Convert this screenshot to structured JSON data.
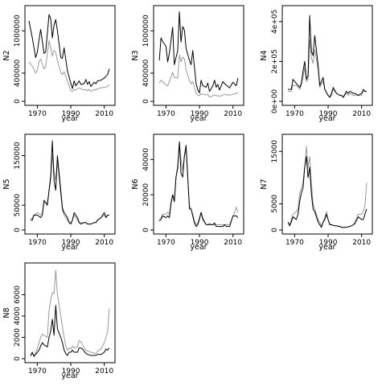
{
  "colors": {
    "observed": "#000000",
    "model": "#999999",
    "frame": "#000000"
  },
  "chart_data": [
    {
      "type": "line",
      "ylabel": "N2",
      "xlabel": "year",
      "xlim": [
        1965,
        2014
      ],
      "ylim": [
        0,
        1300000
      ],
      "xticks": [
        1970,
        1990,
        2010
      ],
      "xtick_labels": [
        "1970",
        "1990",
        "2010"
      ],
      "yticks": [
        0,
        400000,
        1000000
      ],
      "ytick_labels": [
        "0",
        "400000",
        "1000000"
      ],
      "x": [
        1965,
        1967,
        1969,
        1970,
        1971,
        1972,
        1974,
        1975,
        1977,
        1978,
        1979,
        1980,
        1981,
        1982,
        1984,
        1985,
        1986,
        1988,
        1990,
        1991,
        1992,
        1993,
        1995,
        1996,
        1998,
        1999,
        2000,
        2001,
        2002,
        2004,
        2005,
        2006,
        2008,
        2010,
        2012,
        2013
      ],
      "series": [
        {
          "role": "observed",
          "values": [
            1140000,
            900000,
            620000,
            700000,
            870000,
            1020000,
            680000,
            700000,
            1230000,
            1170000,
            900000,
            1080000,
            1160000,
            1000000,
            620000,
            610000,
            760000,
            430000,
            260000,
            180000,
            290000,
            220000,
            290000,
            240000,
            250000,
            310000,
            240000,
            280000,
            210000,
            270000,
            250000,
            290000,
            300000,
            330000,
            380000,
            460000
          ]
        },
        {
          "role": "model",
          "values": [
            560000,
            500000,
            400000,
            440000,
            560000,
            600000,
            460000,
            490000,
            860000,
            760000,
            640000,
            720000,
            700000,
            580000,
            410000,
            380000,
            420000,
            290000,
            150000,
            140000,
            170000,
            160000,
            190000,
            180000,
            160000,
            170000,
            150000,
            170000,
            140000,
            170000,
            160000,
            180000,
            190000,
            200000,
            210000,
            240000
          ]
        }
      ]
    },
    {
      "type": "line",
      "ylabel": "N3",
      "xlabel": "year",
      "xlim": [
        1965,
        2014
      ],
      "ylim": [
        0,
        1300000
      ],
      "xticks": [
        1970,
        1990,
        2010
      ],
      "xtick_labels": [
        "1970",
        "1990",
        "2010"
      ],
      "yticks": [
        0,
        400000,
        1000000
      ],
      "ytick_labels": [
        "0",
        "400000",
        "1000000"
      ],
      "x": [
        1966,
        1967,
        1968,
        1970,
        1971,
        1972,
        1974,
        1975,
        1977,
        1978,
        1979,
        1980,
        1981,
        1982,
        1984,
        1985,
        1986,
        1988,
        1989,
        1990,
        1991,
        1992,
        1994,
        1995,
        1996,
        1998,
        1999,
        2000,
        2001,
        2002,
        2004,
        2005,
        2006,
        2008,
        2010,
        2012,
        2013
      ],
      "series": [
        {
          "role": "observed",
          "values": [
            580000,
            900000,
            850000,
            780000,
            560000,
            680000,
            1050000,
            520000,
            720000,
            1270000,
            840000,
            1060000,
            1010000,
            750000,
            580000,
            520000,
            720000,
            250000,
            160000,
            120000,
            300000,
            220000,
            200000,
            260000,
            140000,
            220000,
            300000,
            200000,
            240000,
            160000,
            280000,
            250000,
            230000,
            190000,
            270000,
            220000,
            330000
          ]
        },
        {
          "role": "model",
          "values": [
            260000,
            300000,
            280000,
            230000,
            220000,
            280000,
            410000,
            340000,
            330000,
            660000,
            560000,
            630000,
            600000,
            450000,
            290000,
            250000,
            280000,
            110000,
            90000,
            80000,
            110000,
            100000,
            90000,
            100000,
            60000,
            80000,
            90000,
            80000,
            80000,
            70000,
            90000,
            100000,
            90000,
            90000,
            100000,
            110000,
            130000
          ]
        }
      ]
    },
    {
      "type": "line",
      "ylabel": "N4",
      "xlabel": "year",
      "xlim": [
        1965,
        2014
      ],
      "ylim": [
        0,
        460000
      ],
      "xticks": [
        1970,
        1990,
        2010
      ],
      "xtick_labels": [
        "1970",
        "1990",
        "2010"
      ],
      "yticks": [
        0,
        200000,
        400000
      ],
      "ytick_labels": [
        "0e+00",
        "2e+05",
        "4e+05"
      ],
      "x": [
        1966,
        1968,
        1969,
        1971,
        1973,
        1974,
        1975,
        1976,
        1977,
        1978,
        1979,
        1980,
        1981,
        1982,
        1984,
        1985,
        1987,
        1988,
        1990,
        1991,
        1992,
        1993,
        1995,
        1997,
        1998,
        1999,
        2001,
        2002,
        2003,
        2005,
        2006,
        2008,
        2010,
        2011,
        2012,
        2013
      ],
      "series": [
        {
          "role": "observed",
          "values": [
            60000,
            60000,
            110000,
            90000,
            70000,
            90000,
            150000,
            200000,
            110000,
            130000,
            430000,
            250000,
            230000,
            330000,
            180000,
            80000,
            120000,
            60000,
            30000,
            20000,
            40000,
            70000,
            40000,
            30000,
            30000,
            20000,
            50000,
            40000,
            50000,
            40000,
            40000,
            30000,
            40000,
            60000,
            50000,
            50000
          ]
        },
        {
          "role": "model",
          "values": [
            50000,
            50000,
            80000,
            80000,
            60000,
            80000,
            120000,
            170000,
            100000,
            110000,
            310000,
            220000,
            190000,
            260000,
            160000,
            70000,
            100000,
            60000,
            30000,
            20000,
            30000,
            60000,
            40000,
            30000,
            30000,
            20000,
            40000,
            30000,
            40000,
            30000,
            30000,
            30000,
            30000,
            50000,
            50000,
            50000
          ]
        }
      ]
    },
    {
      "type": "line",
      "ylabel": "N5",
      "xlabel": "year",
      "xlim": [
        1965,
        2014
      ],
      "ylim": [
        0,
        185000
      ],
      "xticks": [
        1970,
        1990,
        2010
      ],
      "xtick_labels": [
        "1970",
        "1990",
        "2010"
      ],
      "yticks": [
        0,
        50000,
        150000
      ],
      "ytick_labels": [
        "0",
        "50000",
        "150000"
      ],
      "x": [
        1966,
        1967,
        1968,
        1970,
        1972,
        1973,
        1974,
        1975,
        1976,
        1978,
        1979,
        1980,
        1981,
        1982,
        1984,
        1985,
        1986,
        1988,
        1989,
        1990,
        1991,
        1992,
        1994,
        1995,
        1996,
        1998,
        1999,
        2000,
        2002,
        2004,
        2005,
        2006,
        2008,
        2010,
        2011,
        2012,
        2013
      ],
      "series": [
        {
          "role": "observed",
          "values": [
            20000,
            20000,
            30000,
            30000,
            25000,
            30000,
            60000,
            55000,
            50000,
            110000,
            180000,
            100000,
            80000,
            150000,
            80000,
            45000,
            35000,
            25000,
            15000,
            12000,
            20000,
            35000,
            25000,
            15000,
            12000,
            15000,
            15000,
            12000,
            12000,
            15000,
            15000,
            20000,
            25000,
            35000,
            25000,
            30000,
            30000
          ]
        },
        {
          "role": "model",
          "values": [
            20000,
            25000,
            30000,
            35000,
            30000,
            35000,
            55000,
            55000,
            55000,
            100000,
            150000,
            120000,
            100000,
            140000,
            70000,
            40000,
            30000,
            20000,
            15000,
            15000,
            20000,
            30000,
            20000,
            15000,
            15000,
            15000,
            15000,
            12000,
            12000,
            15000,
            15000,
            20000,
            25000,
            30000,
            25000,
            30000,
            30000
          ]
        }
      ]
    },
    {
      "type": "line",
      "ylabel": "N6",
      "xlabel": "year",
      "xlim": [
        1965,
        2014
      ],
      "ylim": [
        0,
        52000
      ],
      "xticks": [
        1970,
        1990,
        2010
      ],
      "xtick_labels": [
        "1970",
        "1990",
        "2010"
      ],
      "yticks": [
        0,
        20000,
        40000
      ],
      "ytick_labels": [
        "0",
        "20000",
        "40000"
      ],
      "x": [
        1966,
        1967,
        1968,
        1970,
        1971,
        1972,
        1973,
        1974,
        1975,
        1976,
        1977,
        1978,
        1979,
        1980,
        1981,
        1982,
        1984,
        1985,
        1986,
        1987,
        1988,
        1989,
        1990,
        1991,
        1992,
        1994,
        1995,
        1996,
        1997,
        1998,
        1999,
        2000,
        2002,
        2004,
        2005,
        2006,
        2008,
        2010,
        2011,
        2012,
        2013
      ],
      "series": [
        {
          "role": "observed",
          "values": [
            5000,
            6000,
            8000,
            7000,
            8000,
            7000,
            15000,
            20000,
            16000,
            30000,
            35000,
            50000,
            32000,
            30000,
            42000,
            48000,
            12000,
            12000,
            8000,
            4000,
            2000,
            3000,
            6000,
            10000,
            6000,
            3000,
            3000,
            3000,
            3000,
            3000,
            4000,
            2000,
            2000,
            2000,
            3000,
            2000,
            2000,
            8000,
            8000,
            8000,
            7000
          ]
        },
        {
          "role": "model",
          "values": [
            6000,
            7000,
            9000,
            9000,
            10000,
            9000,
            16000,
            20000,
            18000,
            30000,
            37000,
            50000,
            40000,
            34000,
            42000,
            45000,
            14000,
            12000,
            9000,
            5000,
            3000,
            4000,
            7000,
            10000,
            7000,
            3000,
            3000,
            4000,
            3000,
            3000,
            3000,
            3000,
            3000,
            3000,
            3000,
            3000,
            3000,
            8000,
            10000,
            13000,
            10000
          ]
        }
      ]
    },
    {
      "type": "line",
      "ylabel": "N7",
      "xlabel": "year",
      "xlim": [
        1965,
        2014
      ],
      "ylim": [
        0,
        17500
      ],
      "xticks": [
        1970,
        1990,
        2010
      ],
      "xtick_labels": [
        "1970",
        "1990",
        "2010"
      ],
      "yticks": [
        0,
        5000,
        15000
      ],
      "ytick_labels": [
        "0",
        "5000",
        "15000"
      ],
      "x": [
        1966,
        1967,
        1968,
        1969,
        1971,
        1972,
        1973,
        1974,
        1975,
        1976,
        1977,
        1978,
        1979,
        1980,
        1981,
        1982,
        1984,
        1985,
        1986,
        1987,
        1988,
        1989,
        1990,
        1991,
        1992,
        1994,
        1995,
        1996,
        1997,
        1998,
        1999,
        2000,
        2002,
        2004,
        2005,
        2006,
        2008,
        2010,
        2011,
        2012,
        2013
      ],
      "series": [
        {
          "role": "observed",
          "values": [
            1500,
            800,
            1500,
            2500,
            2000,
            3000,
            5500,
            7000,
            8000,
            12000,
            14000,
            10000,
            12000,
            7000,
            4000,
            3500,
            1500,
            1000,
            500,
            1500,
            2000,
            3000,
            2000,
            1000,
            1000,
            800,
            800,
            700,
            700,
            500,
            500,
            500,
            600,
            800,
            1000,
            1200,
            2500,
            2000,
            2000,
            3000,
            4000
          ]
        },
        {
          "role": "model",
          "values": [
            1500,
            1000,
            2000,
            3000,
            3500,
            4000,
            7000,
            8000,
            9000,
            12000,
            16000,
            12000,
            14000,
            9000,
            5000,
            4000,
            2000,
            1500,
            800,
            1500,
            2500,
            3500,
            2000,
            1200,
            1000,
            800,
            800,
            700,
            700,
            500,
            500,
            500,
            600,
            800,
            1000,
            1500,
            3000,
            3000,
            3500,
            4500,
            9000
          ]
        }
      ]
    },
    {
      "type": "line",
      "ylabel": "N8",
      "xlabel": "year",
      "xlim": [
        1965,
        2014
      ],
      "ylim": [
        0,
        8600
      ],
      "xticks": [
        1970,
        1990,
        2010
      ],
      "xtick_labels": [
        "1970",
        "1990",
        "2010"
      ],
      "yticks": [
        0,
        2000,
        4000,
        6000
      ],
      "ytick_labels": [
        "0",
        "2000",
        "4000",
        "6000"
      ],
      "x": [
        1966,
        1967,
        1968,
        1969,
        1971,
        1972,
        1973,
        1974,
        1975,
        1976,
        1977,
        1978,
        1979,
        1980,
        1981,
        1982,
        1984,
        1985,
        1986,
        1987,
        1988,
        1989,
        1990,
        1991,
        1992,
        1994,
        1995,
        1996,
        1997,
        1998,
        1999,
        2000,
        2002,
        2004,
        2005,
        2006,
        2008,
        2010,
        2011,
        2012,
        2013
      ],
      "series": [
        {
          "role": "observed",
          "values": [
            300,
            600,
            200,
            400,
            800,
            1200,
            1500,
            1300,
            1200,
            1100,
            2000,
            2600,
            3700,
            2200,
            5000,
            2800,
            2000,
            1500,
            800,
            500,
            300,
            600,
            600,
            800,
            600,
            600,
            1000,
            1000,
            900,
            700,
            500,
            400,
            300,
            300,
            300,
            400,
            400,
            600,
            900,
            800,
            1000
          ]
        },
        {
          "role": "model",
          "values": [
            200,
            500,
            300,
            500,
            1500,
            2000,
            2300,
            2200,
            2100,
            2000,
            4500,
            5500,
            6200,
            6100,
            8300,
            6000,
            4000,
            3000,
            2000,
            1200,
            800,
            1000,
            900,
            1200,
            1000,
            1100,
            1700,
            1600,
            1300,
            1000,
            800,
            700,
            600,
            500,
            500,
            700,
            900,
            1500,
            2000,
            2500,
            4700
          ]
        }
      ]
    }
  ]
}
